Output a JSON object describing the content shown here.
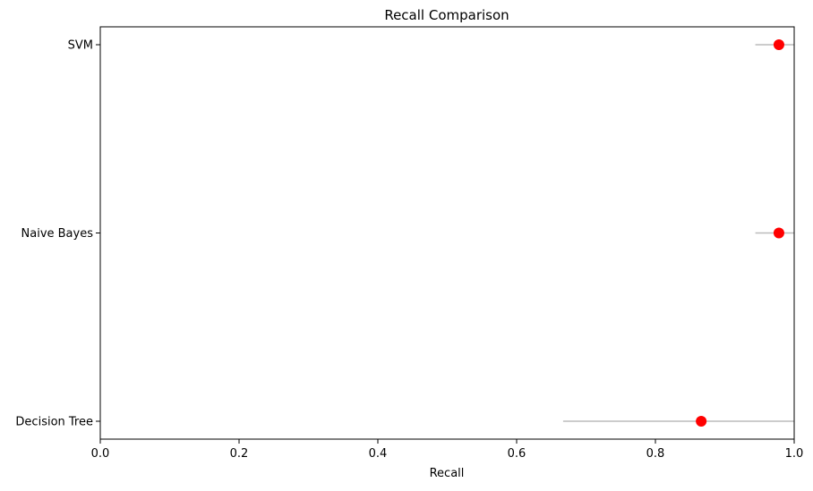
{
  "chart_data": {
    "type": "scatter",
    "title": "Recall Comparison",
    "xlabel": "Recall",
    "ylabel": "",
    "xlim": [
      0.0,
      1.0
    ],
    "x_ticks": [
      "0.0",
      "0.2",
      "0.4",
      "0.6",
      "0.8",
      "1.0"
    ],
    "categories": [
      "Decision Tree",
      "Naive Bayes",
      "SVM"
    ],
    "series": [
      {
        "values": [
          0.866,
          0.978,
          0.978
        ],
        "lower": [
          0.667,
          0.944,
          0.944
        ],
        "upper": [
          1.0,
          1.0,
          1.0
        ]
      }
    ],
    "marker_color": "#ff0000",
    "range_line_color": "#bbbbbb",
    "grid": false,
    "legend": "none"
  }
}
